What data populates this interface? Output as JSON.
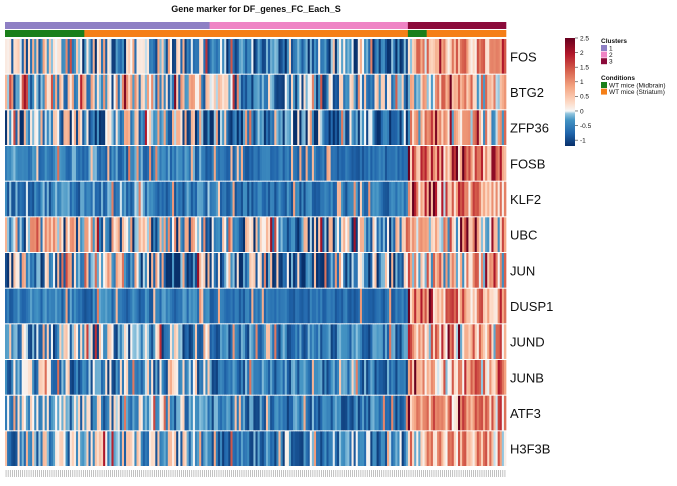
{
  "chart_data": {
    "type": "heatmap",
    "title": "Gene marker for  DF_genes_FC_Each_S",
    "rows": [
      "FOS",
      "BTG2",
      "ZFP36",
      "FOSB",
      "KLF2",
      "UBC",
      "JUN",
      "DUSP1",
      "JUND",
      "JUNB",
      "ATF3",
      "H3F3B"
    ],
    "n_columns": 240,
    "color_scale": {
      "ticks": [
        "2.5",
        "2",
        "1.5",
        "1",
        "0.5",
        "0",
        "-0.5",
        "-1"
      ],
      "tick_values": [
        2.5,
        2,
        1.5,
        1,
        0.5,
        0,
        -0.5,
        -1
      ],
      "min": -1.2,
      "max": 2.5,
      "colors": {
        "low": "#08306b",
        "mid": "#f7f7f7",
        "high": "#67001f"
      }
    },
    "annotations": {
      "clusters": {
        "title": "Clusters",
        "labels": [
          "1",
          "2",
          "3"
        ],
        "colors": [
          "#8e7fc4",
          "#ef84c5",
          "#8b0a3a"
        ],
        "segments": [
          {
            "label": "1",
            "columns": 98
          },
          {
            "label": "2",
            "columns": 95
          },
          {
            "label": "3",
            "columns": 47
          }
        ]
      },
      "conditions": {
        "title": "Conditions",
        "labels": [
          "WT mice (Midbrain)",
          "WT mice (Striatum)"
        ],
        "colors": [
          "#1a7f1a",
          "#f57f17"
        ],
        "segments": [
          {
            "label": "WT mice (Midbrain)",
            "columns": 38
          },
          {
            "label": "WT mice (Striatum)",
            "columns": 155
          },
          {
            "label": "WT mice (Midbrain)",
            "columns": 9
          },
          {
            "label": "WT mice (Striatum)",
            "columns": 38
          }
        ]
      }
    },
    "row_profiles": [
      {
        "gene": "FOS",
        "cluster_means": [
          -0.2,
          -0.6,
          0.7
        ],
        "spread": [
          0.9,
          0.6,
          0.7
        ]
      },
      {
        "gene": "BTG2",
        "cluster_means": [
          0.0,
          -0.3,
          0.5
        ],
        "spread": [
          0.9,
          0.7,
          0.8
        ]
      },
      {
        "gene": "ZFP36",
        "cluster_means": [
          -0.2,
          -0.7,
          0.4
        ],
        "spread": [
          0.9,
          0.6,
          0.8
        ]
      },
      {
        "gene": "FOSB",
        "cluster_means": [
          -0.55,
          -0.7,
          1.2
        ],
        "spread": [
          0.35,
          0.2,
          0.9
        ]
      },
      {
        "gene": "KLF2",
        "cluster_means": [
          -0.5,
          -0.65,
          1.0
        ],
        "spread": [
          0.4,
          0.3,
          0.9
        ]
      },
      {
        "gene": "UBC",
        "cluster_means": [
          -0.1,
          -0.3,
          0.6
        ],
        "spread": [
          1.0,
          0.9,
          0.9
        ]
      },
      {
        "gene": "JUN",
        "cluster_means": [
          -0.2,
          -0.4,
          0.5
        ],
        "spread": [
          1.0,
          0.9,
          0.9
        ]
      },
      {
        "gene": "DUSP1",
        "cluster_means": [
          -0.6,
          -0.7,
          1.1
        ],
        "spread": [
          0.3,
          0.2,
          0.9
        ]
      },
      {
        "gene": "JUND",
        "cluster_means": [
          -0.3,
          -0.6,
          0.7
        ],
        "spread": [
          0.7,
          0.4,
          0.8
        ]
      },
      {
        "gene": "JUNB",
        "cluster_means": [
          -0.3,
          -0.6,
          0.8
        ],
        "spread": [
          0.7,
          0.4,
          0.8
        ]
      },
      {
        "gene": "ATF3",
        "cluster_means": [
          -0.3,
          -0.6,
          0.9
        ],
        "spread": [
          0.6,
          0.4,
          0.8
        ]
      },
      {
        "gene": "H3F3B",
        "cluster_means": [
          -0.2,
          -0.5,
          0.7
        ],
        "spread": [
          0.7,
          0.5,
          0.8
        ]
      }
    ],
    "xlabel": "",
    "ylabel": "",
    "legend_position": "right"
  }
}
